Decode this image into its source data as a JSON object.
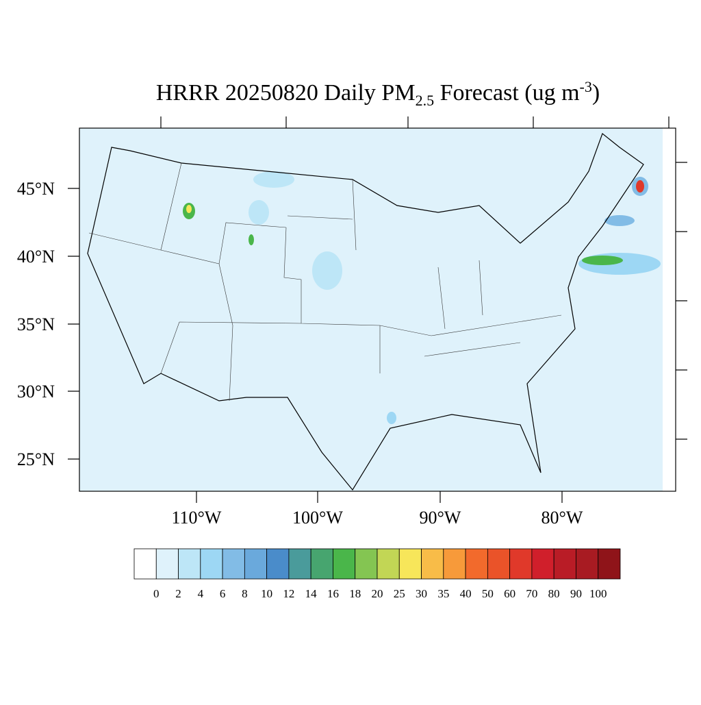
{
  "title": {
    "main": "HRRR 20250820 Daily PM",
    "sub": "2.5",
    "rest": " Forecast (ug m",
    "sup": "-3",
    "end": ")"
  },
  "map": {
    "lat_labels": [
      "45°N",
      "40°N",
      "35°N",
      "30°N",
      "25°N"
    ],
    "lon_labels": [
      "110°W",
      "100°W",
      "90°W",
      "80°W"
    ]
  },
  "colorbar": {
    "levels": [
      0,
      2,
      4,
      6,
      8,
      10,
      12,
      14,
      16,
      18,
      20,
      25,
      30,
      35,
      40,
      50,
      60,
      70,
      80,
      90,
      100
    ],
    "colors": [
      "#ffffff",
      "#dff2fb",
      "#bde6f7",
      "#9dd7f4",
      "#82bce6",
      "#6aa9dc",
      "#4a8cca",
      "#4a9b9b",
      "#47a56f",
      "#4ab64a",
      "#84c552",
      "#c2d655",
      "#f7e65a",
      "#f8bc48",
      "#f79a3a",
      "#f26a2c",
      "#ea5329",
      "#e0392a",
      "#d01f2b",
      "#b91c26",
      "#a81b22",
      "#8f1419"
    ]
  }
}
